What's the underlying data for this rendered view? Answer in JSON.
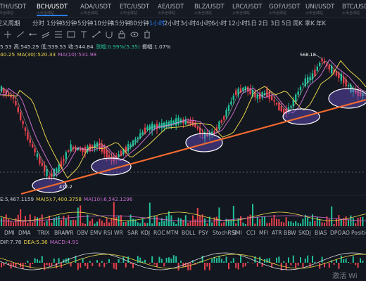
{
  "tabs": [
    {
      "pair": "ETH/USDT",
      "sub": "火币全球站"
    },
    {
      "pair": "BCH/USDT",
      "sub": "火币全球站",
      "active": true
    },
    {
      "pair": "ADA/USDT",
      "sub": "火币全球站"
    },
    {
      "pair": "ETC/USDT",
      "sub": "火币全球站"
    },
    {
      "pair": "AE/USDT",
      "sub": "火币全球站"
    },
    {
      "pair": "BLZ/USDT",
      "sub": "火币全球站"
    },
    {
      "pair": "LRC/USDT",
      "sub": "火币全球站"
    },
    {
      "pair": "GOF/USDT",
      "sub": "火币全球站"
    },
    {
      "pair": "UNI/USDT",
      "sub": "火币全球站"
    },
    {
      "pair": "BTC/USDT",
      "sub": "火币全球站"
    }
  ],
  "timeframes": [
    "自定义周期",
    "分时",
    "1分钟",
    "3分钟",
    "5分钟",
    "10分钟",
    "15分钟",
    "30分钟",
    "1小时",
    "2小时",
    "3小时",
    "4小时",
    "6小时",
    "12小时",
    "1日",
    "2日",
    "3日",
    "5日",
    "周K",
    "季K",
    "年K"
  ],
  "active_timeframe": "1小时",
  "ohlc": {
    "high_label": "高:545.29",
    "low_label": "低:539.53",
    "close_label": "收:544.84",
    "change_label": "涨幅:0.99%(5.35)",
    "amp_label": "振幅:1.07%",
    "open_partial": "5.53"
  },
  "ma": {
    "ma5_partial": "40.25",
    "ma30": "MA(30):520.33",
    "ma10": "MA(10):531.98"
  },
  "annotations": {
    "high_price": "568.18",
    "low_price": "472.2"
  },
  "volume": {
    "vol": "E:5,467.1159",
    "ma5": "MA(5):7,400.3758",
    "ma10": "MA(10):6,542.1296"
  },
  "indicators": [
    "DMI",
    "DMA",
    "TRIX",
    "BRAR",
    "VR",
    "OBV",
    "EMV",
    "RSI",
    "WR",
    "SAR",
    "KDJ",
    "ROC",
    "MTM",
    "BOLL",
    "PSY",
    "StochRSI",
    "SMI",
    "CCI",
    "MFI",
    "ATR",
    "BBW",
    "SKDJ",
    "BIAS",
    "DPO",
    "AO",
    "Position"
  ],
  "macd": {
    "dif": "DIF:7.78",
    "dea": "DEA:5.36",
    "macd": "MACD:4.91"
  },
  "colors": {
    "bg": "#13171f",
    "up": "#22c09a",
    "down": "#e5414d",
    "trend": "#f26a2f",
    "accent": "#2d7cf6",
    "ma_yellow": "#e8d44d",
    "ma_purple": "#c86fd0",
    "ellipse": "#6a52c9"
  },
  "watermark": "激活 Wi"
}
